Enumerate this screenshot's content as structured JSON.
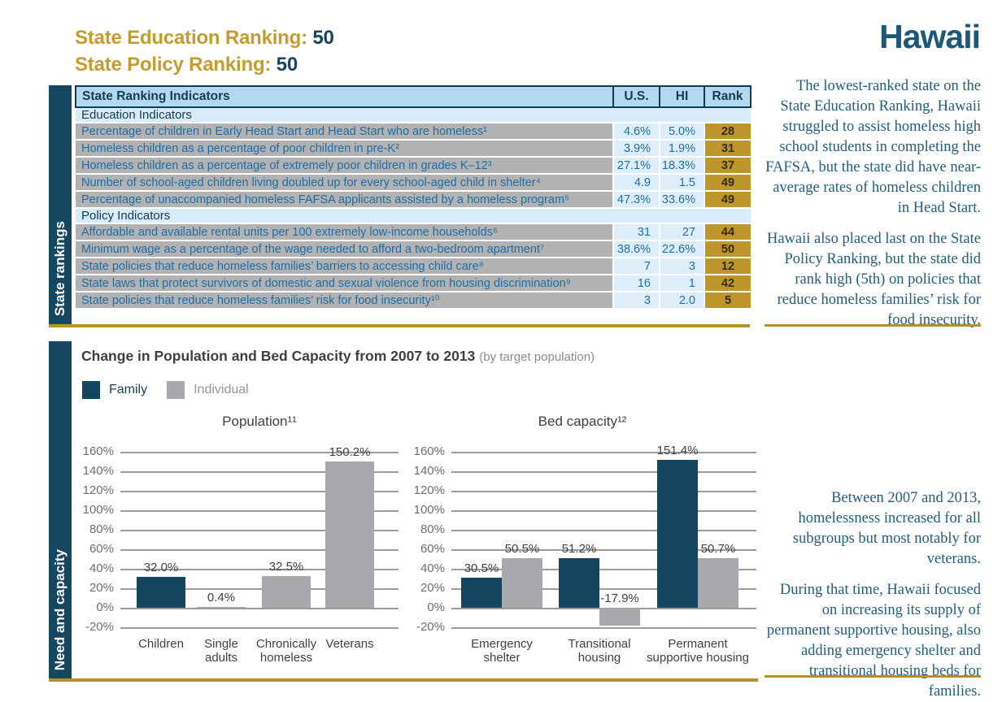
{
  "page": {
    "state_name": "Hawaii"
  },
  "header": {
    "education_ranking_label": "State Education Ranking:",
    "education_ranking_value": "50",
    "policy_ranking_label": "State Policy Ranking:",
    "policy_ranking_value": "50"
  },
  "rankings_table": {
    "sidebar_label": "State rankings",
    "columns": [
      "State Ranking Indicators",
      "U.S.",
      "HI",
      "Rank"
    ],
    "sections": [
      {
        "label": "Education Indicators",
        "rows": [
          {
            "indicator": "Percentage of children in Early Head Start and Head Start who are homeless¹",
            "us": "4.6%",
            "hi": "5.0%",
            "rank": "28"
          },
          {
            "indicator": "Homeless children as a percentage of poor children in pre-K²",
            "us": "3.9%",
            "hi": "1.9%",
            "rank": "31"
          },
          {
            "indicator": "Homeless children as a percentage of extremely poor children in grades K–12³",
            "us": "27.1%",
            "hi": "18.3%",
            "rank": "37"
          },
          {
            "indicator": "Number of school-aged children living doubled up for every school-aged child in shelter⁴",
            "us": "4.9",
            "hi": "1.5",
            "rank": "49"
          },
          {
            "indicator": "Percentage of unaccompanied homeless FAFSA applicants assisted by a homeless program⁵",
            "us": "47.3%",
            "hi": "33.6%",
            "rank": "49"
          }
        ]
      },
      {
        "label": "Policy Indicators",
        "rows": [
          {
            "indicator": "Affordable and available rental units per 100 extremely low-income households⁶",
            "us": "31",
            "hi": "27",
            "rank": "44"
          },
          {
            "indicator": "Minimum wage as a percentage of the wage needed to afford a two-bedroom apartment⁷",
            "us": "38.6%",
            "hi": "22.6%",
            "rank": "50"
          },
          {
            "indicator": "State policies that reduce homeless families’ barriers to accessing child care⁸",
            "us": "7",
            "hi": "3",
            "rank": "12"
          },
          {
            "indicator": "State laws that protect survivors of domestic and sexual violence from housing discrimination⁹",
            "us": "16",
            "hi": "1",
            "rank": "42"
          },
          {
            "indicator": "State policies that reduce homeless families’ risk for food insecurity¹⁰",
            "us": "3",
            "hi": "2.0",
            "rank": "5"
          }
        ]
      }
    ]
  },
  "summary_notes": {
    "top": [
      "The lowest-ranked state on the State Education Ranking, Hawaii struggled to assist homeless high school students in completing the FAFSA, but the state did have near-average rates of homeless children in Head Start.",
      "Hawaii also placed last on the State Policy Ranking, but the state did rank high (5th) on policies that reduce homeless families’ risk for food insecurity."
    ],
    "bottom": [
      "Between 2007 and 2013, homelessness increased for all subgroups but most notably for veterans.",
      "During that time, Hawaii focused on increasing its supply of permanent supportive housing, also adding emergency shelter and transitional housing beds for families."
    ]
  },
  "charts_section": {
    "sidebar_label": "Need and capacity",
    "title": "Change in Population and Bed Capacity from 2007 to 2013",
    "title_suffix": "(by target population)",
    "legend": [
      {
        "label": "Family",
        "color": "#14465f",
        "label_color": "#14465f"
      },
      {
        "label": "Individual",
        "color": "#a7a9ac",
        "label_color": "#939598"
      }
    ]
  },
  "chart_data": [
    {
      "type": "bar",
      "title": "Population¹¹",
      "categories": [
        "Children",
        "Single adults",
        "Chronically homeless",
        "Veterans"
      ],
      "series_by_bar": [
        "Family",
        "Individual",
        "Individual",
        "Individual"
      ],
      "values": [
        32.0,
        0.4,
        32.5,
        150.2
      ],
      "value_labels": [
        "32.0%",
        "0.4%",
        "32.5%",
        "150.2%"
      ],
      "ylim": [
        -20,
        160
      ],
      "ytick_step": 20,
      "ytick_labels": [
        "160%",
        "140%",
        "120%",
        "100%",
        "80%",
        "60%",
        "40%",
        "20%",
        "0%",
        "-20%"
      ],
      "grid": true,
      "legend_position": "top-left-shared"
    },
    {
      "type": "bar",
      "title": "Bed capacity¹²",
      "categories": [
        "Emergency shelter",
        "Transitional housing",
        "Permanent supportive housing"
      ],
      "series": [
        {
          "name": "Family",
          "values": [
            30.5,
            51.2,
            151.4
          ]
        },
        {
          "name": "Individual",
          "values": [
            50.5,
            -17.9,
            50.7
          ]
        }
      ],
      "value_labels": [
        [
          "30.5%",
          "51.2%",
          "151.4%"
        ],
        [
          "50.5%",
          "-17.9%",
          "50.7%"
        ]
      ],
      "ylim": [
        -20,
        160
      ],
      "ytick_step": 20,
      "ytick_labels": [
        "160%",
        "140%",
        "120%",
        "100%",
        "80%",
        "60%",
        "40%",
        "20%",
        "0%",
        "-20%"
      ],
      "grid": true,
      "legend_position": "top-left-shared"
    }
  ],
  "colors": {
    "navy": "#15465f",
    "gold_rule": "#b7922a",
    "gold_heading": "#c49c2f",
    "family_bar": "#14465f",
    "individual_bar": "#a7a9ac",
    "table_header_bg": "#b3d9f1",
    "table_section_bg": "#d8ecf9",
    "table_label_bg": "#b2b2b3",
    "table_value_bg": "#ddeefa",
    "rank_cell_bg": "#bf962b",
    "indicator_text_blue": "#1e6ea6",
    "serif_text": "#235e7e"
  }
}
